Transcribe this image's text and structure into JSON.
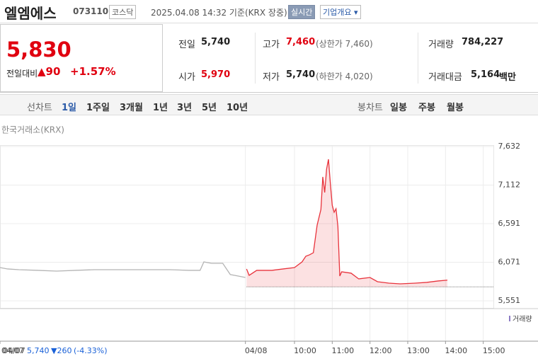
{
  "header": {
    "title": "엘엠에스",
    "code": "073110",
    "market": "코스닥",
    "timestamp": "2025.04.08 14:32 기준(KRX 장중)",
    "realtime": "실시간",
    "company_info": "기업개요"
  },
  "price": {
    "current": "5,830",
    "change_label": "전일대비",
    "change": "▲90",
    "change_rate": "+1.57%"
  },
  "stats": {
    "prev": {
      "label": "전일",
      "value": "5,740"
    },
    "high": {
      "label": "고가",
      "value": "7,460",
      "note": "(상한가 7,460)"
    },
    "volume": {
      "label": "거래량",
      "value": "784,227"
    },
    "open": {
      "label": "시가",
      "value": "5,970"
    },
    "low": {
      "label": "저가",
      "value": "5,740",
      "note": "(하한가 4,020)"
    },
    "amount": {
      "label": "거래대금",
      "value": "5,164",
      "unit": "백만"
    }
  },
  "tabs": {
    "line_label": "선차트",
    "line": [
      "1일",
      "1주일",
      "3개월",
      "1년",
      "3년",
      "5년",
      "10년"
    ],
    "candle_label": "봉차트",
    "candle": [
      "일봉",
      "주봉",
      "월봉"
    ]
  },
  "chart_data": {
    "type": "line",
    "source": "한국거래소(KRX)",
    "volume_label": "거래량",
    "baseline": 5740,
    "xlim": [
      0,
      13.5
    ],
    "ylim": [
      5551,
      7632
    ],
    "xticks": [
      {
        "value": 0,
        "label": "04/07"
      },
      {
        "value": 6.5,
        "label": "04/08"
      },
      {
        "value": 7.8,
        "label": "10:00"
      },
      {
        "value": 8.8,
        "label": "11:00"
      },
      {
        "value": 9.8,
        "label": "12:00"
      },
      {
        "value": 10.8,
        "label": "13:00"
      },
      {
        "value": 11.8,
        "label": "14:00"
      },
      {
        "value": 12.8,
        "label": "15:00"
      }
    ],
    "yticks": [
      {
        "value": 7632,
        "label": "7,632"
      },
      {
        "value": 7112,
        "label": "7,112"
      },
      {
        "value": 6591,
        "label": "6,591"
      },
      {
        "value": 6071,
        "label": "6,071"
      },
      {
        "value": 5551,
        "label": "5,551"
      }
    ],
    "series": [
      {
        "color": "#b4b4b4",
        "x": [
          0,
          0.2,
          0.5,
          1,
          1.5,
          2,
          2.5,
          3,
          3.5,
          4,
          4.5,
          5,
          5.3,
          5.4,
          5.6,
          5.9,
          6.0,
          6.1,
          6.3,
          6.5
        ],
        "values": [
          6000,
          5981,
          5971,
          5962,
          5952,
          5962,
          5971,
          5971,
          5971,
          5971,
          5971,
          5962,
          5962,
          6076,
          6057,
          6057,
          5981,
          5905,
          5886,
          5866
        ]
      },
      {
        "color": "#e8333c",
        "x": [
          6.53,
          6.6,
          6.8,
          7.2,
          7.5,
          7.8,
          8.0,
          8.1,
          8.2,
          8.3,
          8.4,
          8.5,
          8.55,
          8.6,
          8.65,
          8.7,
          8.75,
          8.8,
          8.85,
          8.9,
          8.95,
          9.0,
          9.05,
          9.3,
          9.5,
          9.8,
          10.0,
          10.3,
          10.6,
          11.0,
          11.3,
          11.6,
          11.85
        ],
        "values": [
          5981,
          5895,
          5962,
          5962,
          5981,
          6000,
          6076,
          6152,
          6172,
          6200,
          6573,
          6783,
          7222,
          7012,
          7327,
          7460,
          7136,
          6840,
          6745,
          6793,
          6554,
          5885,
          5943,
          5924,
          5847,
          5866,
          5809,
          5790,
          5780,
          5790,
          5800,
          5819,
          5830
        ]
      }
    ]
  },
  "footer": {
    "date": "04/07",
    "price": "5,740",
    "change": "▼260",
    "rate": "(-4.33%)"
  }
}
